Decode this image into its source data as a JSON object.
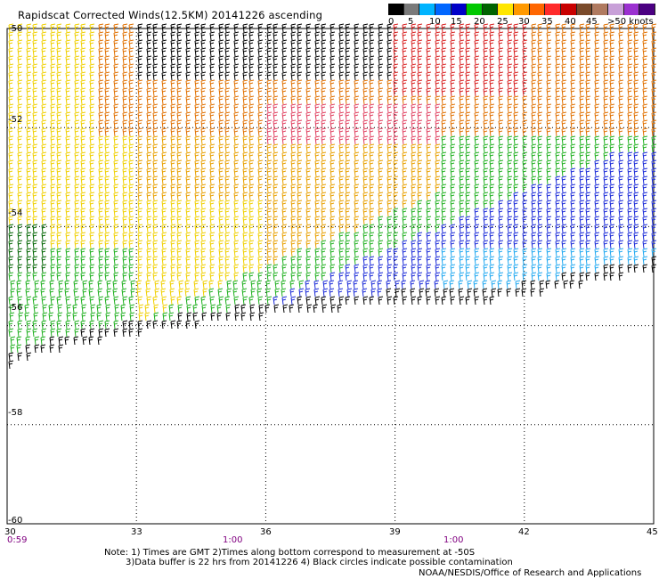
{
  "title": "Rapidscat Corrected Winds(12.5KM) 20141226 ascending",
  "legend": {
    "labels": [
      "0",
      "5",
      "10",
      "15",
      "20",
      "25",
      "30",
      "35",
      "40",
      "45",
      ">50 knots"
    ],
    "colors": [
      "#000000",
      "#7a7a7a",
      "#00b4ff",
      "#0066ff",
      "#0000c8",
      "#00c800",
      "#006400",
      "#ffe600",
      "#ff9900",
      "#ff6600",
      "#ff2a2a",
      "#c80000",
      "#7a4a2a",
      "#b07a60",
      "#c8a0d8",
      "#9b30d0",
      "#4b0082"
    ]
  },
  "lat_labels": [
    "-50",
    "-52",
    "-54",
    "-56",
    "-58",
    "-60"
  ],
  "lon_labels": [
    "30",
    "33",
    "36",
    "39",
    "42",
    "45"
  ],
  "time_labels": [
    "0:59",
    "1:00",
    "1:00"
  ],
  "notes": {
    "line1": "Note: 1) Times are GMT 2)Times along bottom correspond to measurement at -50S",
    "line2": "3)Data buffer is 22 hrs from 20141226 4) Black circles indicate possible contamination"
  },
  "credit": "NOAA/NESDIS/Office of Research and Applications",
  "map": {
    "lat_range": [
      -60,
      -50
    ],
    "lon_range": [
      30,
      45
    ],
    "grid": "dotted",
    "wind_colors": {
      "black": "#000000",
      "yellow": "#f0d000",
      "orange": "#e8a000",
      "darkorange": "#e07000",
      "red": "#d82020",
      "pink": "#e04060",
      "green": "#20b020",
      "darkgreen": "#006400",
      "blue": "#1a2ad8",
      "lightblue": "#20a8f0"
    }
  }
}
